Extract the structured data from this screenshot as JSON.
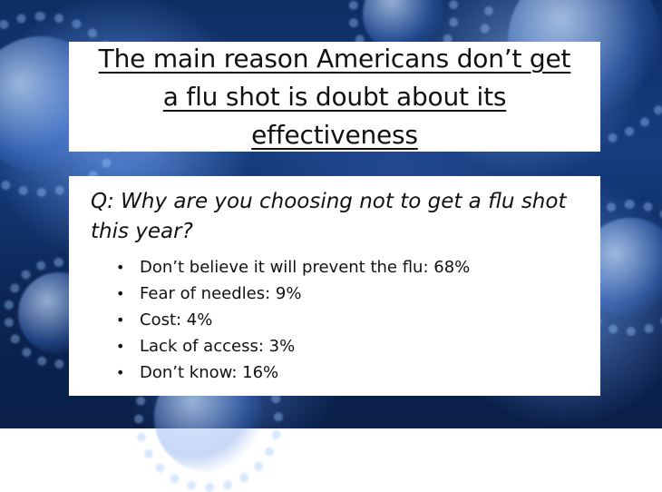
{
  "title": "The main reason Americans don’t get a flu shot is doubt about its effectiveness",
  "question": "Q: Why are you choosing not to get a flu shot this year?",
  "answers": [
    {
      "text": "Don’t believe it will prevent the flu: 68%"
    },
    {
      "text": "Fear of needles: 9%"
    },
    {
      "text": "Cost: 4%"
    },
    {
      "text": "Lack of access: 3%"
    },
    {
      "text": "Don’t know: 16%"
    }
  ],
  "bullet_glyph": "•",
  "colors": {
    "background_dark": "#0b2554",
    "background_mid": "#163d80",
    "panel": "#ffffff",
    "text": "#111111"
  }
}
